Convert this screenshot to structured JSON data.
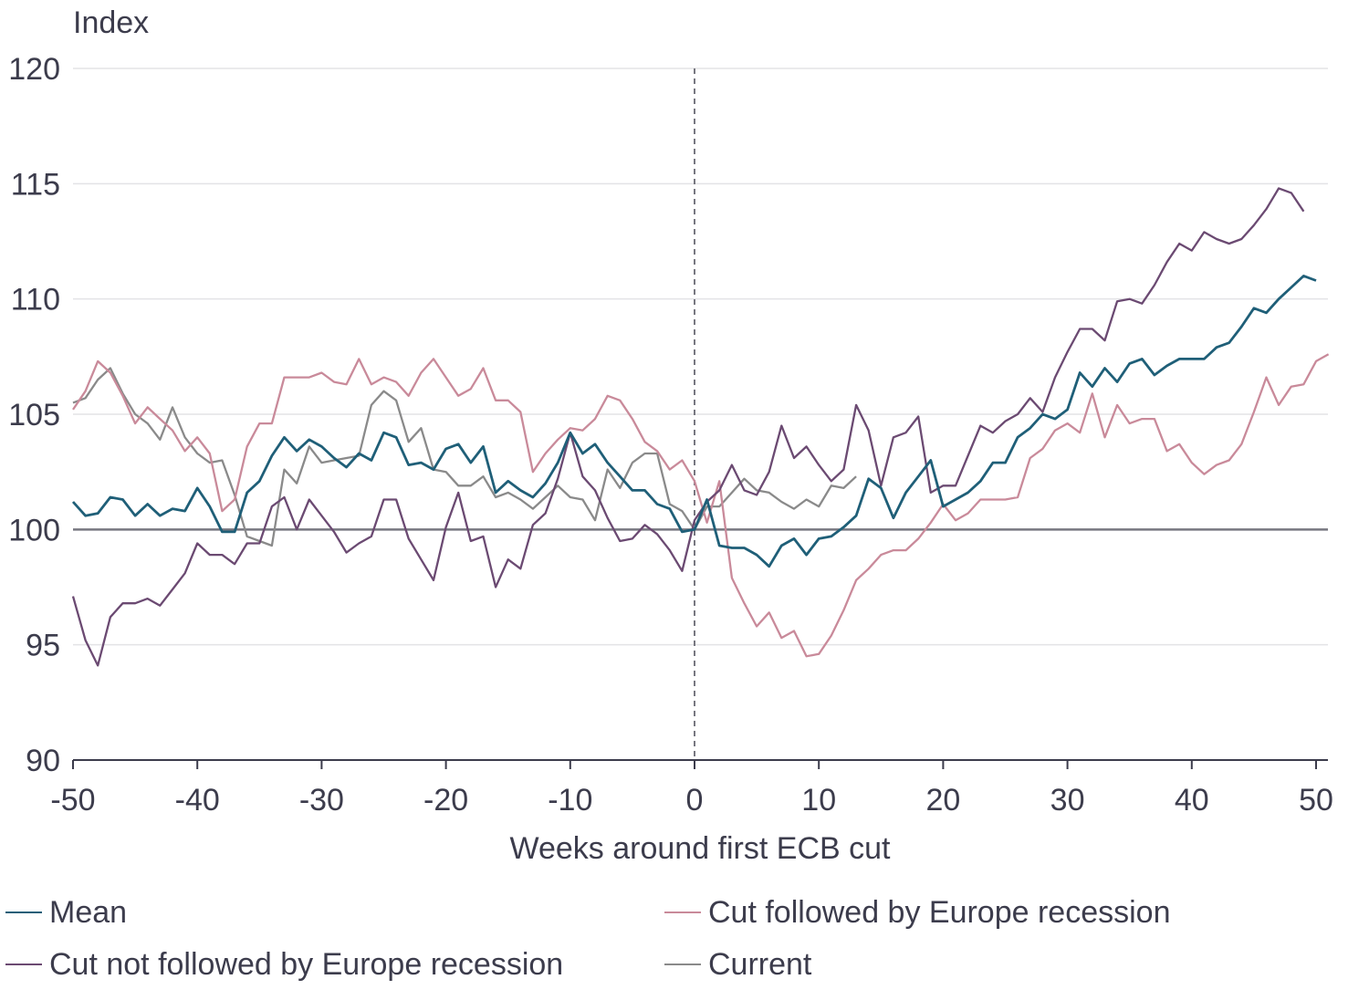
{
  "chart_data": {
    "type": "line",
    "ylabel": "Index",
    "xlabel": "Weeks around first ECB cut",
    "xlim": [
      -50,
      51
    ],
    "ylim": [
      90,
      120
    ],
    "x_ticks": [
      -50,
      -40,
      -30,
      -20,
      -10,
      0,
      10,
      20,
      30,
      40,
      50
    ],
    "y_ticks": [
      90,
      95,
      100,
      105,
      110,
      115,
      120
    ],
    "reference_line_y": 100,
    "event_line_x": 0,
    "grid": "horizontal",
    "legend_position": "bottom",
    "series": [
      {
        "name": "Mean",
        "color": "#1f5f78",
        "x_start": -50,
        "values": [
          101.2,
          100.6,
          100.7,
          101.4,
          101.3,
          100.6,
          101.1,
          100.6,
          100.9,
          100.8,
          101.8,
          101.0,
          99.9,
          99.9,
          101.6,
          102.1,
          103.2,
          104.0,
          103.4,
          103.9,
          103.6,
          103.1,
          102.7,
          103.3,
          103.0,
          104.2,
          104.0,
          102.8,
          102.9,
          102.6,
          103.5,
          103.7,
          102.9,
          103.6,
          101.6,
          102.1,
          101.7,
          101.4,
          102.0,
          102.9,
          104.2,
          103.3,
          103.7,
          102.9,
          102.3,
          101.7,
          101.7,
          101.1,
          100.9,
          99.9,
          100.0,
          101.3,
          99.3,
          99.2,
          99.2,
          98.9,
          98.4,
          99.3,
          99.6,
          98.9,
          99.6,
          99.7,
          100.1,
          100.6,
          102.2,
          101.8,
          100.5,
          101.6,
          102.3,
          103.0,
          101.0,
          101.3,
          101.6,
          102.1,
          102.9,
          102.9,
          104.0,
          104.4,
          105.0,
          104.8,
          105.2,
          106.8,
          106.2,
          107.0,
          106.4,
          107.2,
          107.4,
          106.7,
          107.1,
          107.4,
          107.4,
          107.4,
          107.9,
          108.1,
          108.8,
          109.6,
          109.4,
          110.0,
          110.5,
          111.0,
          110.8
        ]
      },
      {
        "name": "Cut followed by Europe recession",
        "color": "#c98a9a",
        "x_start": -50,
        "values": [
          105.2,
          106.0,
          107.3,
          106.8,
          105.8,
          104.6,
          105.3,
          104.8,
          104.3,
          103.4,
          104.0,
          103.3,
          100.8,
          101.3,
          103.6,
          104.6,
          104.6,
          106.6,
          106.6,
          106.6,
          106.8,
          106.4,
          106.3,
          107.4,
          106.3,
          106.6,
          106.4,
          105.8,
          106.8,
          107.4,
          106.6,
          105.8,
          106.1,
          107.0,
          105.6,
          105.6,
          105.1,
          102.5,
          103.3,
          103.9,
          104.4,
          104.3,
          104.8,
          105.8,
          105.6,
          104.8,
          103.8,
          103.4,
          102.6,
          103.0,
          102.1,
          100.3,
          102.1,
          97.9,
          96.8,
          95.8,
          96.4,
          95.3,
          95.6,
          94.5,
          94.6,
          95.4,
          96.5,
          97.8,
          98.3,
          98.9,
          99.1,
          99.1,
          99.6,
          100.3,
          101.1,
          100.4,
          100.7,
          101.3,
          101.3,
          101.3,
          101.4,
          103.1,
          103.5,
          104.3,
          104.6,
          104.2,
          105.9,
          104.0,
          105.4,
          104.6,
          104.8,
          104.8,
          103.4,
          103.7,
          102.9,
          102.4,
          102.8,
          103.0,
          103.7,
          105.1,
          106.6,
          105.4,
          106.2,
          106.3,
          107.3,
          107.6
        ]
      },
      {
        "name": "Cut not followed by Europe recession",
        "color": "#6b4a72",
        "x_start": -50,
        "values": [
          97.1,
          95.2,
          94.1,
          96.2,
          96.8,
          96.8,
          97.0,
          96.7,
          97.4,
          98.1,
          99.4,
          98.9,
          98.9,
          98.5,
          99.4,
          99.4,
          101.0,
          101.4,
          100.0,
          101.3,
          100.6,
          99.9,
          99.0,
          99.4,
          99.7,
          101.3,
          101.3,
          99.6,
          98.7,
          97.8,
          100.1,
          101.6,
          99.5,
          99.7,
          97.5,
          98.7,
          98.3,
          100.2,
          100.7,
          102.2,
          104.2,
          102.3,
          101.7,
          100.5,
          99.5,
          99.6,
          100.2,
          99.8,
          99.1,
          98.2,
          100.4,
          101.2,
          101.7,
          102.8,
          101.7,
          101.5,
          102.5,
          104.5,
          103.1,
          103.6,
          102.8,
          102.1,
          102.6,
          105.4,
          104.3,
          101.9,
          104.0,
          104.2,
          104.9,
          101.6,
          101.9,
          101.9,
          103.2,
          104.5,
          104.2,
          104.7,
          105.0,
          105.7,
          105.1,
          106.6,
          107.7,
          108.7,
          108.7,
          108.2,
          109.9,
          110.0,
          109.8,
          110.6,
          111.6,
          112.4,
          112.1,
          112.9,
          112.6,
          112.4,
          112.6,
          113.2,
          113.9,
          114.8,
          114.6,
          113.8
        ]
      },
      {
        "name": "Current",
        "color": "#8a8a8a",
        "x_start": -50,
        "values": [
          105.5,
          105.7,
          106.5,
          107.0,
          105.9,
          105.0,
          104.6,
          103.9,
          105.3,
          104.0,
          103.3,
          102.9,
          103.0,
          101.5,
          99.7,
          99.5,
          99.3,
          102.6,
          102.0,
          103.6,
          102.9,
          103.0,
          103.1,
          103.2,
          105.4,
          106.0,
          105.6,
          103.8,
          104.4,
          102.6,
          102.5,
          101.9,
          101.9,
          102.3,
          101.4,
          101.6,
          101.3,
          100.9,
          101.4,
          101.9,
          101.4,
          101.3,
          100.4,
          102.6,
          101.8,
          102.9,
          103.3,
          103.3,
          101.1,
          100.8,
          100.0,
          101.0,
          101.0,
          101.6,
          102.2,
          101.7,
          101.6,
          101.2,
          100.9,
          101.3,
          101.0,
          101.9,
          101.8,
          102.3
        ]
      }
    ],
    "legend": [
      {
        "label": "Mean",
        "color": "#1f5f78"
      },
      {
        "label": "Cut followed by Europe recession",
        "color": "#c98a9a"
      },
      {
        "label": "Cut not followed by Europe recession",
        "color": "#6b4a72"
      },
      {
        "label": "Current",
        "color": "#8a8a8a"
      }
    ]
  }
}
